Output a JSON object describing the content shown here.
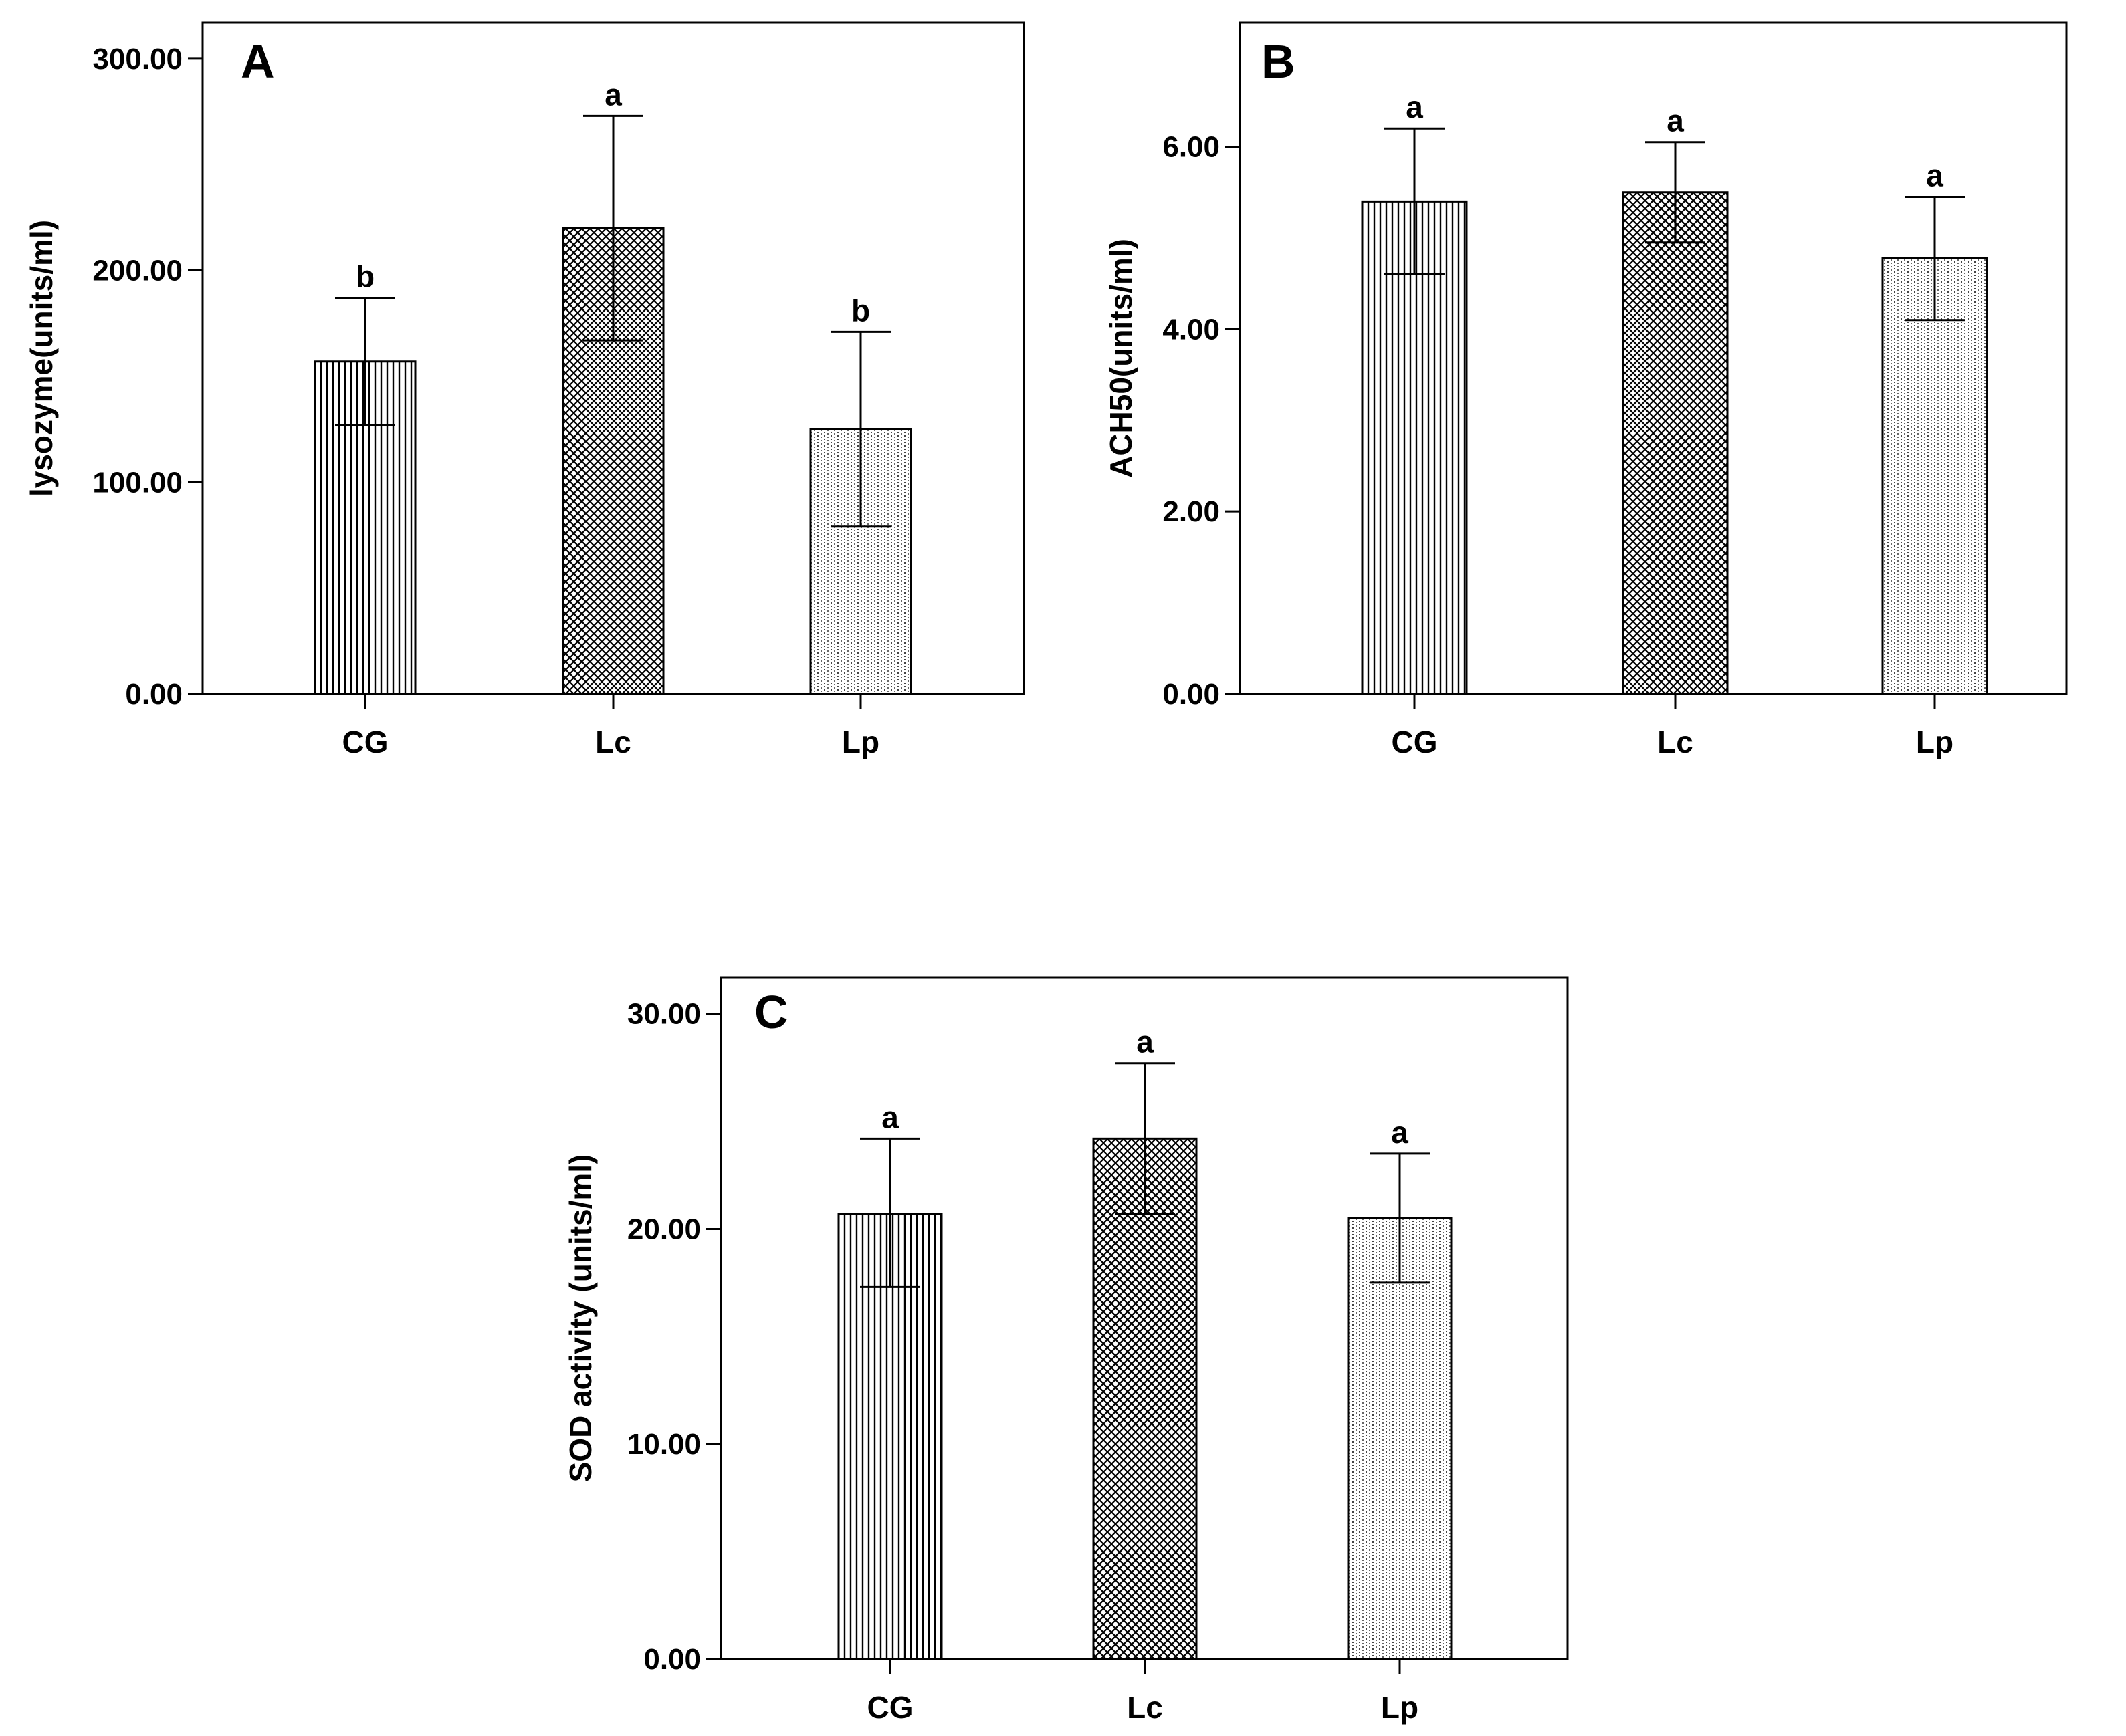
{
  "chart_data": [
    {
      "type": "bar",
      "panel": "A",
      "title": "",
      "xlabel": "",
      "ylabel": "lysozyme(units/ml)",
      "categories": [
        "CG",
        "Lc",
        "Lp"
      ],
      "values": [
        157,
        220,
        125
      ],
      "errors": [
        [
          127,
          187
        ],
        [
          167,
          273
        ],
        [
          79,
          171
        ]
      ],
      "significance": [
        "b",
        "a",
        "b"
      ],
      "patterns": [
        "vertical-lines",
        "crosshatch",
        "dots"
      ],
      "yticks": [
        "0.00",
        "100.00",
        "200.00",
        "300.00"
      ],
      "yticks_values": [
        0,
        100,
        200,
        300
      ],
      "ylim": [
        0,
        317
      ],
      "grid": false
    },
    {
      "type": "bar",
      "panel": "B",
      "title": "",
      "xlabel": "",
      "ylabel": "ACH50(units/ml)",
      "categories": [
        "CG",
        "Lc",
        "Lp"
      ],
      "values": [
        5.4,
        5.5,
        4.78
      ],
      "errors": [
        [
          4.6,
          6.2
        ],
        [
          4.95,
          6.05
        ],
        [
          4.1,
          5.45
        ]
      ],
      "significance": [
        "a",
        "a",
        "a"
      ],
      "patterns": [
        "vertical-lines",
        "crosshatch",
        "dots"
      ],
      "yticks": [
        "0.00",
        "2.00",
        "4.00",
        "6.00"
      ],
      "yticks_values": [
        0,
        2,
        4,
        6
      ],
      "ylim": [
        0,
        7.36
      ],
      "grid": false
    },
    {
      "type": "bar",
      "panel": "C",
      "title": "",
      "xlabel": "",
      "ylabel": "SOD activity (units/ml)",
      "categories": [
        "CG",
        "Lc",
        "Lp"
      ],
      "values": [
        20.7,
        24.2,
        20.5
      ],
      "errors": [
        [
          17.3,
          24.2
        ],
        [
          20.7,
          27.7
        ],
        [
          17.5,
          23.5
        ]
      ],
      "significance": [
        "a",
        "a",
        "a"
      ],
      "patterns": [
        "vertical-lines",
        "crosshatch",
        "dots"
      ],
      "yticks": [
        "0.00",
        "10.00",
        "20.00",
        "30.00"
      ],
      "yticks_values": [
        0,
        10,
        20,
        30
      ],
      "ylim": [
        0,
        31.7
      ],
      "grid": false
    }
  ]
}
